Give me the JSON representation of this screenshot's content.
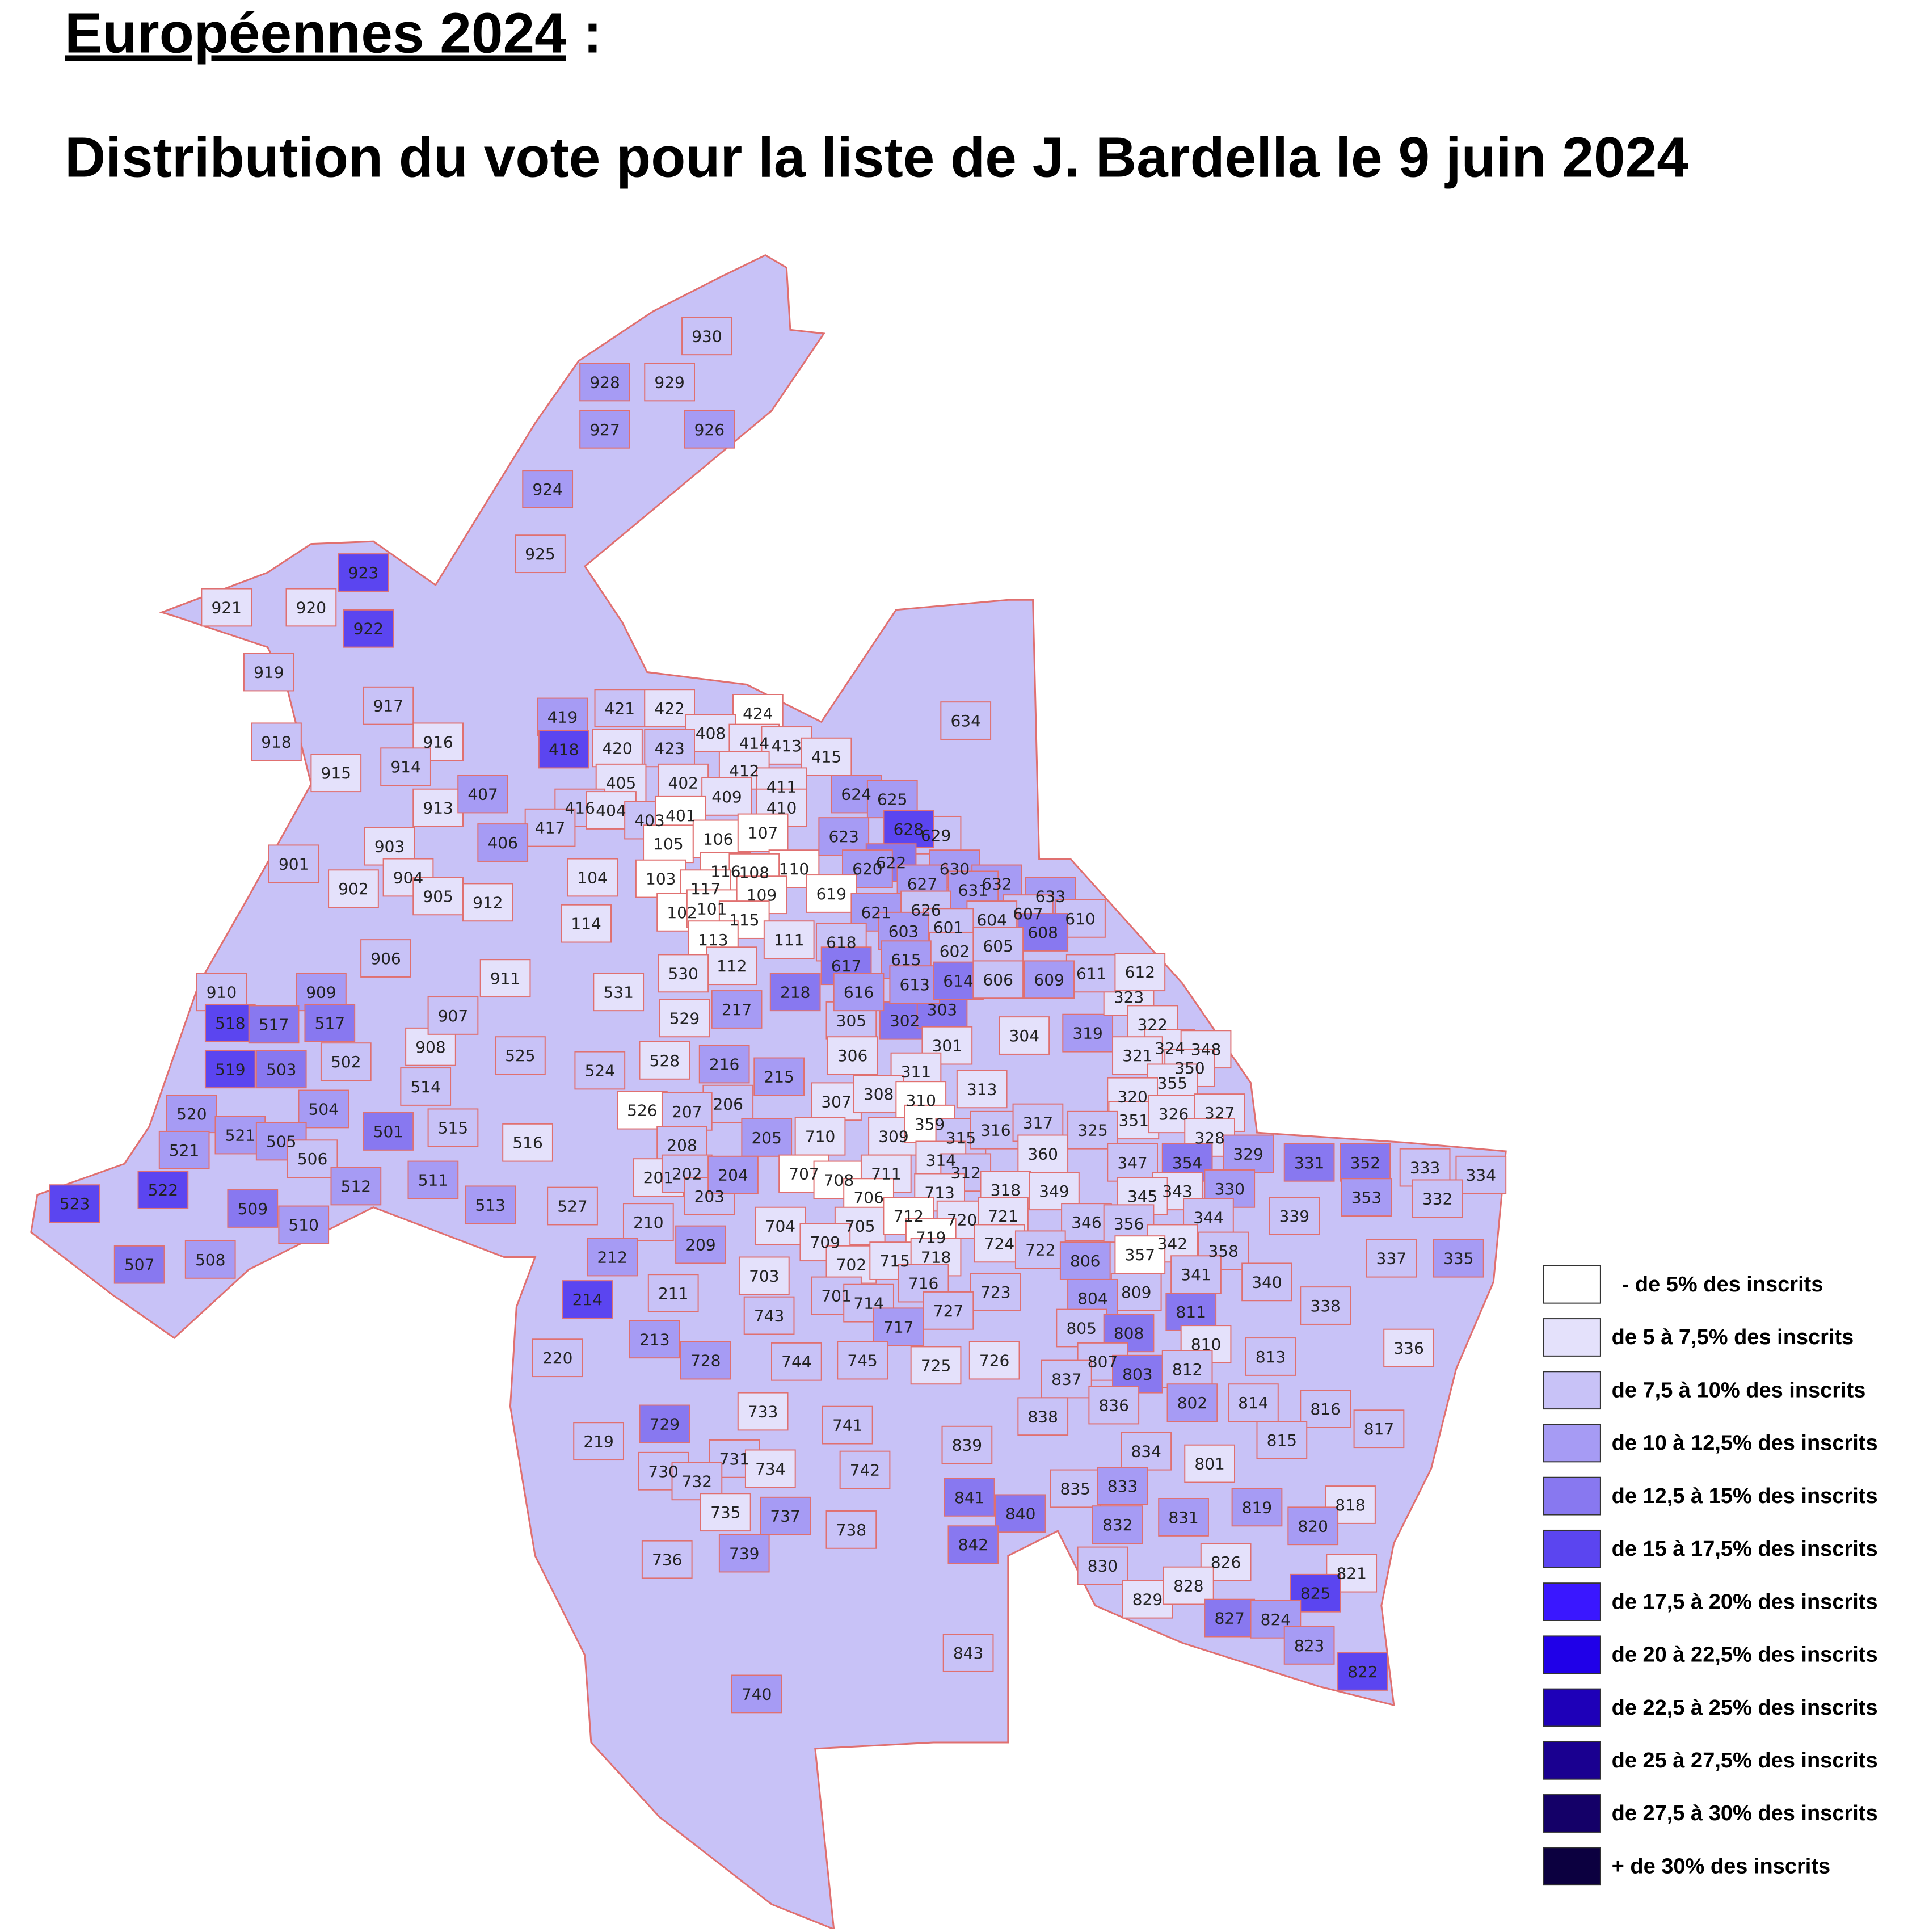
{
  "title": "Européennes 2024",
  "title_suffix": ":",
  "subtitle": "Distribution du vote pour la liste de J. Bardella le 9 juin 2024",
  "legend": [
    {
      "label": "- de 5% des inscrits",
      "color": "#ffffff"
    },
    {
      "label": "de 5 à 7,5% des inscrits",
      "color": "#e4e1fb"
    },
    {
      "label": "de 7,5 à 10% des inscrits",
      "color": "#c8c2f7"
    },
    {
      "label": "de 10 à 12,5% des inscrits",
      "color": "#a69bf4"
    },
    {
      "label": "de 12,5 à 15% des inscrits",
      "color": "#8878f0"
    },
    {
      "label": "de 15 à 17,5% des inscrits",
      "color": "#5b45f0"
    },
    {
      "label": "de 17,5 à 20% des inscrits",
      "color": "#3a17ff"
    },
    {
      "label": "de 20 à 22,5% des inscrits",
      "color": "#2000e8"
    },
    {
      "label": "de 22,5 à 25% des inscrits",
      "color": "#1e00b8"
    },
    {
      "label": "de 25 à 27,5% des inscrits",
      "color": "#1a0090"
    },
    {
      "label": "de 27,5 à 30% des inscrits",
      "color": "#140068"
    },
    {
      "label": "+ de 30% des inscrits",
      "color": "#0c0040"
    }
  ],
  "bureaux": [
    {
      "label": "930",
      "level": 2
    },
    {
      "label": "928",
      "level": 3
    },
    {
      "label": "929",
      "level": 2
    },
    {
      "label": "927",
      "level": 3
    },
    {
      "label": "926",
      "level": 3
    },
    {
      "label": "924",
      "level": 3
    },
    {
      "label": "925",
      "level": 2
    },
    {
      "label": "923",
      "level": 5
    },
    {
      "label": "922",
      "level": 5
    },
    {
      "label": "921",
      "level": 1
    },
    {
      "label": "920",
      "level": 1
    },
    {
      "label": "919",
      "level": 2
    },
    {
      "label": "918",
      "level": 2
    },
    {
      "label": "917",
      "level": 2
    },
    {
      "label": "916",
      "level": 1
    },
    {
      "label": "915",
      "level": 1
    },
    {
      "label": "914",
      "level": 2
    },
    {
      "label": "913",
      "level": 1
    },
    {
      "label": "903",
      "level": 1
    },
    {
      "label": "904",
      "level": 1
    },
    {
      "label": "901",
      "level": 2
    },
    {
      "label": "902",
      "level": 1
    },
    {
      "label": "905",
      "level": 1
    },
    {
      "label": "912",
      "level": 1
    },
    {
      "label": "906",
      "level": 2
    },
    {
      "label": "911",
      "level": 1
    },
    {
      "label": "910",
      "level": 2
    },
    {
      "label": "909",
      "level": 3
    },
    {
      "label": "908",
      "level": 1
    },
    {
      "label": "907",
      "level": 2
    },
    {
      "label": "419",
      "level": 3
    },
    {
      "label": "421",
      "level": 2
    },
    {
      "label": "422",
      "level": 1
    },
    {
      "label": "424",
      "level": 0
    },
    {
      "label": "408",
      "level": 1
    },
    {
      "label": "414",
      "level": 1
    },
    {
      "label": "413",
      "level": 1
    },
    {
      "label": "415",
      "level": 1
    },
    {
      "label": "418",
      "level": 5
    },
    {
      "label": "420",
      "level": 1
    },
    {
      "label": "423",
      "level": 2
    },
    {
      "label": "412",
      "level": 1
    },
    {
      "label": "405",
      "level": 1
    },
    {
      "label": "402",
      "level": 1
    },
    {
      "label": "409",
      "level": 1
    },
    {
      "label": "411",
      "level": 1
    },
    {
      "label": "407",
      "level": 3
    },
    {
      "label": "416",
      "level": 2
    },
    {
      "label": "404",
      "level": 1
    },
    {
      "label": "403",
      "level": 2
    },
    {
      "label": "401",
      "level": 0
    },
    {
      "label": "410",
      "level": 1
    },
    {
      "label": "417",
      "level": 2
    },
    {
      "label": "406",
      "level": 3
    },
    {
      "label": "105",
      "level": 0
    },
    {
      "label": "106",
      "level": 0
    },
    {
      "label": "107",
      "level": 0
    },
    {
      "label": "110",
      "level": 0
    },
    {
      "label": "104",
      "level": 1
    },
    {
      "label": "103",
      "level": 0
    },
    {
      "label": "116",
      "level": 0
    },
    {
      "label": "108",
      "level": 0
    },
    {
      "label": "117",
      "level": 0
    },
    {
      "label": "109",
      "level": 0
    },
    {
      "label": "102",
      "level": 0
    },
    {
      "label": "101",
      "level": 0
    },
    {
      "label": "115",
      "level": 0
    },
    {
      "label": "113",
      "level": 0
    },
    {
      "label": "114",
      "level": 1
    },
    {
      "label": "111",
      "level": 1
    },
    {
      "label": "112",
      "level": 1
    },
    {
      "label": "531",
      "level": 1
    },
    {
      "label": "530",
      "level": 1
    },
    {
      "label": "529",
      "level": 1
    },
    {
      "label": "528",
      "level": 1
    },
    {
      "label": "526",
      "level": 0
    },
    {
      "label": "525",
      "level": 2
    },
    {
      "label": "524",
      "level": 2
    },
    {
      "label": "518",
      "level": 5
    },
    {
      "label": "517",
      "level": 4
    },
    {
      "label": "517",
      "level": 4
    },
    {
      "label": "503",
      "level": 4
    },
    {
      "label": "519",
      "level": 5
    },
    {
      "label": "502",
      "level": 2
    },
    {
      "label": "514",
      "level": 2
    },
    {
      "label": "504",
      "level": 3
    },
    {
      "label": "520",
      "level": 3
    },
    {
      "label": "501",
      "level": 4
    },
    {
      "label": "515",
      "level": 2
    },
    {
      "label": "516",
      "level": 1
    },
    {
      "label": "521",
      "level": 3
    },
    {
      "label": "521",
      "level": 3
    },
    {
      "label": "505",
      "level": 3
    },
    {
      "label": "506",
      "level": 2
    },
    {
      "label": "512",
      "level": 3
    },
    {
      "label": "511",
      "level": 3
    },
    {
      "label": "513",
      "level": 3
    },
    {
      "label": "527",
      "level": 2
    },
    {
      "label": "523",
      "level": 5
    },
    {
      "label": "522",
      "level": 5
    },
    {
      "label": "509",
      "level": 4
    },
    {
      "label": "510",
      "level": 3
    },
    {
      "label": "507",
      "level": 4
    },
    {
      "label": "508",
      "level": 3
    },
    {
      "label": "218",
      "level": 4
    },
    {
      "label": "217",
      "level": 3
    },
    {
      "label": "216",
      "level": 3
    },
    {
      "label": "215",
      "level": 3
    },
    {
      "label": "206",
      "level": 2
    },
    {
      "label": "205",
      "level": 3
    },
    {
      "label": "207",
      "level": 2
    },
    {
      "label": "208",
      "level": 2
    },
    {
      "label": "201",
      "level": 1
    },
    {
      "label": "202",
      "level": 2
    },
    {
      "label": "203",
      "level": 2
    },
    {
      "label": "204",
      "level": 3
    },
    {
      "label": "210",
      "level": 2
    },
    {
      "label": "209",
      "level": 3
    },
    {
      "label": "212",
      "level": 3
    },
    {
      "label": "211",
      "level": 2
    },
    {
      "label": "214",
      "level": 5
    },
    {
      "label": "213",
      "level": 3
    },
    {
      "label": "220",
      "level": 2
    },
    {
      "label": "219",
      "level": 2
    },
    {
      "label": "305",
      "level": 2
    },
    {
      "label": "302",
      "level": 4
    },
    {
      "label": "303",
      "level": 4
    },
    {
      "label": "301",
      "level": 1
    },
    {
      "label": "304",
      "level": 1
    },
    {
      "label": "319",
      "level": 3
    },
    {
      "label": "306",
      "level": 1
    },
    {
      "label": "311",
      "level": 1
    },
    {
      "label": "313",
      "level": 1
    },
    {
      "label": "307",
      "level": 1
    },
    {
      "label": "308",
      "level": 1
    },
    {
      "label": "310",
      "level": 0
    },
    {
      "label": "309",
      "level": 1
    },
    {
      "label": "359",
      "level": 0
    },
    {
      "label": "315",
      "level": 2
    },
    {
      "label": "316",
      "level": 2
    },
    {
      "label": "317",
      "level": 2
    },
    {
      "label": "360",
      "level": 1
    },
    {
      "label": "314",
      "level": 1
    },
    {
      "label": "312",
      "level": 2
    },
    {
      "label": "318",
      "level": 1
    },
    {
      "label": "349",
      "level": 1
    },
    {
      "label": "323",
      "level": 1
    },
    {
      "label": "322",
      "level": 1
    },
    {
      "label": "324",
      "level": 1
    },
    {
      "label": "321",
      "level": 1
    },
    {
      "label": "348",
      "level": 1
    },
    {
      "label": "350",
      "level": 1
    },
    {
      "label": "355",
      "level": 1
    },
    {
      "label": "320",
      "level": 1
    },
    {
      "label": "351",
      "level": 1
    },
    {
      "label": "326",
      "level": 1
    },
    {
      "label": "327",
      "level": 1
    },
    {
      "label": "328",
      "level": 1
    },
    {
      "label": "325",
      "level": 2
    },
    {
      "label": "347",
      "level": 2
    },
    {
      "label": "354",
      "level": 4
    },
    {
      "label": "329",
      "level": 3
    },
    {
      "label": "331",
      "level": 4
    },
    {
      "label": "352",
      "level": 4
    },
    {
      "label": "333",
      "level": 2
    },
    {
      "label": "334",
      "level": 2
    },
    {
      "label": "353",
      "level": 3
    },
    {
      "label": "332",
      "level": 2
    },
    {
      "label": "330",
      "level": 3
    },
    {
      "label": "343",
      "level": 1
    },
    {
      "label": "345",
      "level": 1
    },
    {
      "label": "344",
      "level": 2
    },
    {
      "label": "339",
      "level": 2
    },
    {
      "label": "346",
      "level": 2
    },
    {
      "label": "356",
      "level": 2
    },
    {
      "label": "342",
      "level": 1
    },
    {
      "label": "358",
      "level": 2
    },
    {
      "label": "357",
      "level": 0
    },
    {
      "label": "341",
      "level": 2
    },
    {
      "label": "340",
      "level": 2
    },
    {
      "label": "337",
      "level": 2
    },
    {
      "label": "335",
      "level": 3
    },
    {
      "label": "338",
      "level": 2
    },
    {
      "label": "336",
      "level": 1
    },
    {
      "label": "634",
      "level": 2
    },
    {
      "label": "624",
      "level": 3
    },
    {
      "label": "625",
      "level": 3
    },
    {
      "label": "629",
      "level": 2
    },
    {
      "label": "623",
      "level": 3
    },
    {
      "label": "628",
      "level": 5
    },
    {
      "label": "622",
      "level": 4
    },
    {
      "label": "630",
      "level": 3
    },
    {
      "label": "620",
      "level": 3
    },
    {
      "label": "627",
      "level": 3
    },
    {
      "label": "632",
      "level": 3
    },
    {
      "label": "631",
      "level": 3
    },
    {
      "label": "633",
      "level": 3
    },
    {
      "label": "619",
      "level": 0
    },
    {
      "label": "621",
      "level": 3
    },
    {
      "label": "626",
      "level": 2
    },
    {
      "label": "610",
      "level": 2
    },
    {
      "label": "607",
      "level": 2
    },
    {
      "label": "604",
      "level": 2
    },
    {
      "label": "601",
      "level": 2
    },
    {
      "label": "603",
      "level": 3
    },
    {
      "label": "608",
      "level": 4
    },
    {
      "label": "618",
      "level": 2
    },
    {
      "label": "602",
      "level": 2
    },
    {
      "label": "605",
      "level": 2
    },
    {
      "label": "615",
      "level": 3
    },
    {
      "label": "617",
      "level": 4
    },
    {
      "label": "611",
      "level": 2
    },
    {
      "label": "612",
      "level": 1
    },
    {
      "label": "613",
      "level": 3
    },
    {
      "label": "614",
      "level": 4
    },
    {
      "label": "606",
      "level": 2
    },
    {
      "label": "609",
      "level": 3
    },
    {
      "label": "616",
      "level": 3
    },
    {
      "label": "710",
      "level": 1
    },
    {
      "label": "707",
      "level": 0
    },
    {
      "label": "708",
      "level": 0
    },
    {
      "label": "711",
      "level": 1
    },
    {
      "label": "713",
      "level": 1
    },
    {
      "label": "706",
      "level": 0
    },
    {
      "label": "705",
      "level": 1
    },
    {
      "label": "704",
      "level": 1
    },
    {
      "label": "712",
      "level": 0
    },
    {
      "label": "720",
      "level": 1
    },
    {
      "label": "721",
      "level": 1
    },
    {
      "label": "719",
      "level": 0
    },
    {
      "label": "709",
      "level": 1
    },
    {
      "label": "702",
      "level": 1
    },
    {
      "label": "715",
      "level": 1
    },
    {
      "label": "718",
      "level": 1
    },
    {
      "label": "724",
      "level": 1
    },
    {
      "label": "722",
      "level": 2
    },
    {
      "label": "703",
      "level": 1
    },
    {
      "label": "716",
      "level": 2
    },
    {
      "label": "723",
      "level": 2
    },
    {
      "label": "701",
      "level": 2
    },
    {
      "label": "714",
      "level": 2
    },
    {
      "label": "727",
      "level": 2
    },
    {
      "label": "743",
      "level": 2
    },
    {
      "label": "717",
      "level": 3
    },
    {
      "label": "725",
      "level": 1
    },
    {
      "label": "726",
      "level": 1
    },
    {
      "label": "745",
      "level": 2
    },
    {
      "label": "744",
      "level": 2
    },
    {
      "label": "728",
      "level": 3
    },
    {
      "label": "733",
      "level": 1
    },
    {
      "label": "741",
      "level": 2
    },
    {
      "label": "729",
      "level": 4
    },
    {
      "label": "731",
      "level": 2
    },
    {
      "label": "734",
      "level": 1
    },
    {
      "label": "742",
      "level": 2
    },
    {
      "label": "730",
      "level": 2
    },
    {
      "label": "732",
      "level": 2
    },
    {
      "label": "735",
      "level": 1
    },
    {
      "label": "737",
      "level": 3
    },
    {
      "label": "738",
      "level": 2
    },
    {
      "label": "736",
      "level": 2
    },
    {
      "label": "739",
      "level": 3
    },
    {
      "label": "740",
      "level": 3
    },
    {
      "label": "806",
      "level": 3
    },
    {
      "label": "809",
      "level": 2
    },
    {
      "label": "804",
      "level": 3
    },
    {
      "label": "811",
      "level": 4
    },
    {
      "label": "805",
      "level": 2
    },
    {
      "label": "808",
      "level": 4
    },
    {
      "label": "810",
      "level": 1
    },
    {
      "label": "813",
      "level": 2
    },
    {
      "label": "807",
      "level": 2
    },
    {
      "label": "803",
      "level": 4
    },
    {
      "label": "812",
      "level": 2
    },
    {
      "label": "837",
      "level": 2
    },
    {
      "label": "836",
      "level": 2
    },
    {
      "label": "802",
      "level": 3
    },
    {
      "label": "814",
      "level": 2
    },
    {
      "label": "816",
      "level": 2
    },
    {
      "label": "838",
      "level": 2
    },
    {
      "label": "817",
      "level": 2
    },
    {
      "label": "839",
      "level": 2
    },
    {
      "label": "815",
      "level": 2
    },
    {
      "label": "834",
      "level": 2
    },
    {
      "label": "801",
      "level": 1
    },
    {
      "label": "835",
      "level": 2
    },
    {
      "label": "833",
      "level": 3
    },
    {
      "label": "841",
      "level": 4
    },
    {
      "label": "840",
      "level": 4
    },
    {
      "label": "819",
      "level": 3
    },
    {
      "label": "818",
      "level": 1
    },
    {
      "label": "820",
      "level": 3
    },
    {
      "label": "831",
      "level": 3
    },
    {
      "label": "832",
      "level": 3
    },
    {
      "label": "842",
      "level": 4
    },
    {
      "label": "830",
      "level": 2
    },
    {
      "label": "826",
      "level": 1
    },
    {
      "label": "821",
      "level": 1
    },
    {
      "label": "825",
      "level": 5
    },
    {
      "label": "829",
      "level": 1
    },
    {
      "label": "828",
      "level": 1
    },
    {
      "label": "827",
      "level": 4
    },
    {
      "label": "824",
      "level": 3
    },
    {
      "label": "823",
      "level": 3
    },
    {
      "label": "822",
      "level": 5
    },
    {
      "label": "843",
      "level": 2
    }
  ]
}
